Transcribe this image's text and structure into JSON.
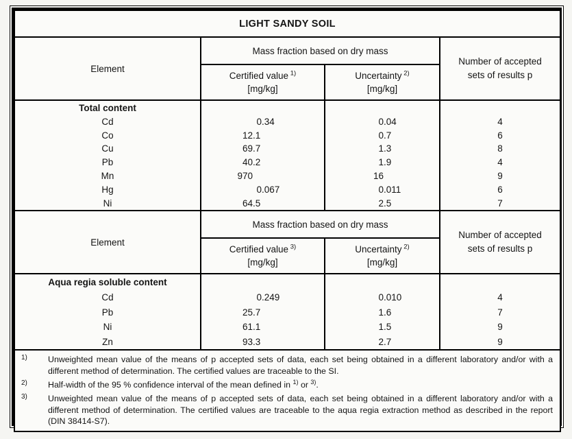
{
  "colors": {
    "page_background": "#f5f5f2",
    "cell_background": "#fbfbf9",
    "border": "#000000",
    "text": "#141414"
  },
  "title": "LIGHT SANDY SOIL",
  "sections": [
    {
      "header": {
        "element_label": "Element",
        "mass_fraction_label": "Mass fraction based on dry mass",
        "certified": {
          "label": "Certified value",
          "sup": "1)",
          "unit": "[mg/kg]"
        },
        "uncertainty": {
          "label": "Uncertainty",
          "sup": "2)",
          "unit": "[mg/kg]"
        },
        "accepted_label": "Number of accepted sets of results p"
      },
      "group_label": "Total content",
      "rows": [
        {
          "element": "Cd",
          "certified": "0.34",
          "uncertainty": "0.04",
          "p": "4"
        },
        {
          "element": "Co",
          "certified": "12.1",
          "uncertainty": "0.7",
          "p": "6"
        },
        {
          "element": "Cu",
          "certified": "69.7",
          "uncertainty": "1.3",
          "p": "8"
        },
        {
          "element": "Pb",
          "certified": "40.2",
          "uncertainty": "1.9",
          "p": "4"
        },
        {
          "element": "Mn",
          "certified": "970",
          "uncertainty": "16",
          "p": "9"
        },
        {
          "element": "Hg",
          "certified": "0.067",
          "uncertainty": "0.011",
          "p": "6"
        },
        {
          "element": "Ni",
          "certified": "64.5",
          "uncertainty": "2.5",
          "p": "7"
        }
      ]
    },
    {
      "header": {
        "element_label": "Element",
        "mass_fraction_label": "Mass fraction based on dry mass",
        "certified": {
          "label": "Certified value",
          "sup": "3)",
          "unit": "[mg/kg]"
        },
        "uncertainty": {
          "label": "Uncertainty",
          "sup": "2)",
          "unit": "[mg/kg]"
        },
        "accepted_label": "Number of accepted sets of results p"
      },
      "group_label": "Aqua regia soluble content",
      "rows": [
        {
          "element": "Cd",
          "certified": "0.249",
          "uncertainty": "0.010",
          "p": "4"
        },
        {
          "element": "Pb",
          "certified": "25.7",
          "uncertainty": "1.6",
          "p": "7"
        },
        {
          "element": "Ni",
          "certified": "61.1",
          "uncertainty": "1.5",
          "p": "9"
        },
        {
          "element": "Zn",
          "certified": "93.3",
          "uncertainty": "2.7",
          "p": "9"
        }
      ]
    }
  ],
  "footnotes": [
    {
      "marker": "1)",
      "parts": [
        {
          "text": "Unweighted mean value of the means of p accepted sets of data, each set being obtained in a different laboratory and/or with a different method of determination. The certified values are traceable to the SI."
        }
      ]
    },
    {
      "marker": "2)",
      "parts": [
        {
          "text": "Half-width of the 95 % confidence interval of the mean defined in "
        },
        {
          "sup": "1)"
        },
        {
          "text": " or "
        },
        {
          "sup": "3)"
        },
        {
          "text": "."
        }
      ]
    },
    {
      "marker": "3)",
      "parts": [
        {
          "text": "Unweighted mean value of the means of p accepted sets of data, each set being obtained in a different laboratory and/or with a different method of determination. The certified values are traceable to the aqua regia extraction method as described in the report (DIN 38414-S7)."
        }
      ]
    }
  ]
}
